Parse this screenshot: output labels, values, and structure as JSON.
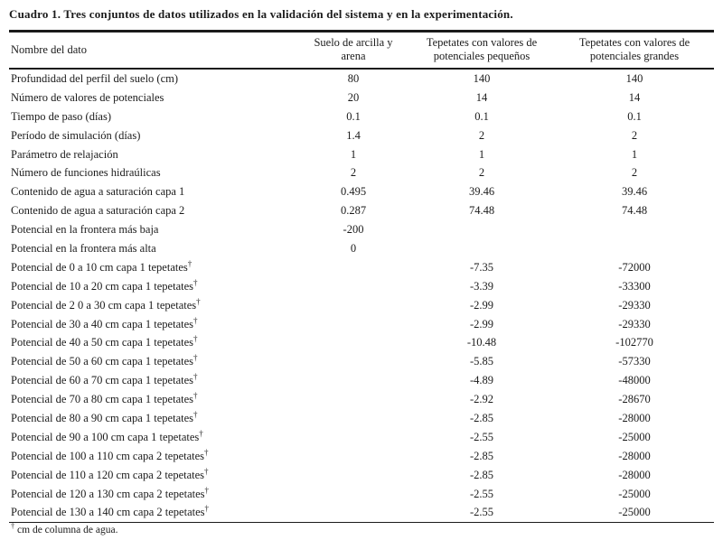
{
  "page": {
    "title": "Cuadro 1. Tres conjuntos de datos utilizados en la validación del sistema y en la experimentación."
  },
  "table": {
    "header": {
      "col1": "Nombre del dato",
      "col2": {
        "line1": "Suelo de arcilla y",
        "line2": "arena"
      },
      "col3": {
        "line1": "Tepetates con valores de",
        "line2": "potenciales pequeños"
      },
      "col4": {
        "line1": "Tepetates con valores de",
        "line2": "potenciales grandes"
      }
    },
    "rows": [
      {
        "name": "Profundidad del perfil del suelo (cm)",
        "dagger": false,
        "v1": "80",
        "v2": "140",
        "v3": "140"
      },
      {
        "name": "Número de valores de potenciales",
        "dagger": false,
        "v1": "20",
        "v2": "14",
        "v3": "14"
      },
      {
        "name": "Tiempo de paso (días)",
        "dagger": false,
        "v1": "0.1",
        "v2": "0.1",
        "v3": "0.1"
      },
      {
        "name": "Período de simulación (días)",
        "dagger": false,
        "v1": "1.4",
        "v2": "2",
        "v3": "2"
      },
      {
        "name": "Parámetro de relajación",
        "dagger": false,
        "v1": "1",
        "v2": "1",
        "v3": "1"
      },
      {
        "name": "Número de funciones hidraúlicas",
        "dagger": false,
        "v1": "2",
        "v2": "2",
        "v3": "2"
      },
      {
        "name": "Contenido de agua a saturación capa 1",
        "dagger": false,
        "v1": "0.495",
        "v2": "39.46",
        "v3": "39.46"
      },
      {
        "name": "Contenido de agua a saturación capa 2",
        "dagger": false,
        "v1": "0.287",
        "v2": "74.48",
        "v3": "74.48"
      },
      {
        "name": "Potencial en la frontera más baja",
        "dagger": false,
        "v1": "-200",
        "v2": "",
        "v3": ""
      },
      {
        "name": "Potencial en la frontera más alta",
        "dagger": false,
        "v1": "0",
        "v2": "",
        "v3": ""
      },
      {
        "name": "Potencial de 0 a 10 cm capa 1 tepetates",
        "dagger": true,
        "v1": "",
        "v2": "-7.35",
        "v3": "-72000"
      },
      {
        "name": "Potencial de 10 a 20 cm capa 1 tepetates",
        "dagger": true,
        "v1": "",
        "v2": "-3.39",
        "v3": "-33300"
      },
      {
        "name": "Potencial de 2 0 a 30 cm capa 1 tepetates",
        "dagger": true,
        "v1": "",
        "v2": "-2.99",
        "v3": "-29330"
      },
      {
        "name": "Potencial de 30 a 40 cm capa 1 tepetates",
        "dagger": true,
        "v1": "",
        "v2": "-2.99",
        "v3": "-29330"
      },
      {
        "name": "Potencial de 40 a 50 cm capa 1 tepetates",
        "dagger": true,
        "v1": "",
        "v2": "-10.48",
        "v3": "-102770"
      },
      {
        "name": "Potencial de 50 a 60 cm capa 1 tepetates",
        "dagger": true,
        "v1": "",
        "v2": "-5.85",
        "v3": "-57330"
      },
      {
        "name": "Potencial de 60 a 70 cm capa 1 tepetates",
        "dagger": true,
        "v1": "",
        "v2": "-4.89",
        "v3": "-48000"
      },
      {
        "name": "Potencial de 70 a 80 cm capa 1 tepetates",
        "dagger": true,
        "v1": "",
        "v2": "-2.92",
        "v3": "-28670"
      },
      {
        "name": "Potencial de 80 a 90 cm capa 1 tepetates",
        "dagger": true,
        "v1": "",
        "v2": "-2.85",
        "v3": "-28000"
      },
      {
        "name": "Potencial de 90 a 100 cm capa 1 tepetates",
        "dagger": true,
        "v1": "",
        "v2": "-2.55",
        "v3": "-25000"
      },
      {
        "name": "Potencial de 100 a 110 cm capa 2 tepetates",
        "dagger": true,
        "v1": "",
        "v2": "-2.85",
        "v3": "-28000"
      },
      {
        "name": "Potencial de 110 a 120 cm capa 2 tepetates",
        "dagger": true,
        "v1": "",
        "v2": "-2.85",
        "v3": "-28000"
      },
      {
        "name": "Potencial de 120 a 130 cm capa 2 tepetates",
        "dagger": true,
        "v1": "",
        "v2": "-2.55",
        "v3": "-25000"
      },
      {
        "name": "Potencial de 130 a 140 cm capa 2 tepetates",
        "dagger": true,
        "v1": "",
        "v2": "-2.55",
        "v3": "-25000"
      }
    ],
    "footnote": {
      "marker": "†",
      "text": "cm de columna de agua."
    }
  }
}
